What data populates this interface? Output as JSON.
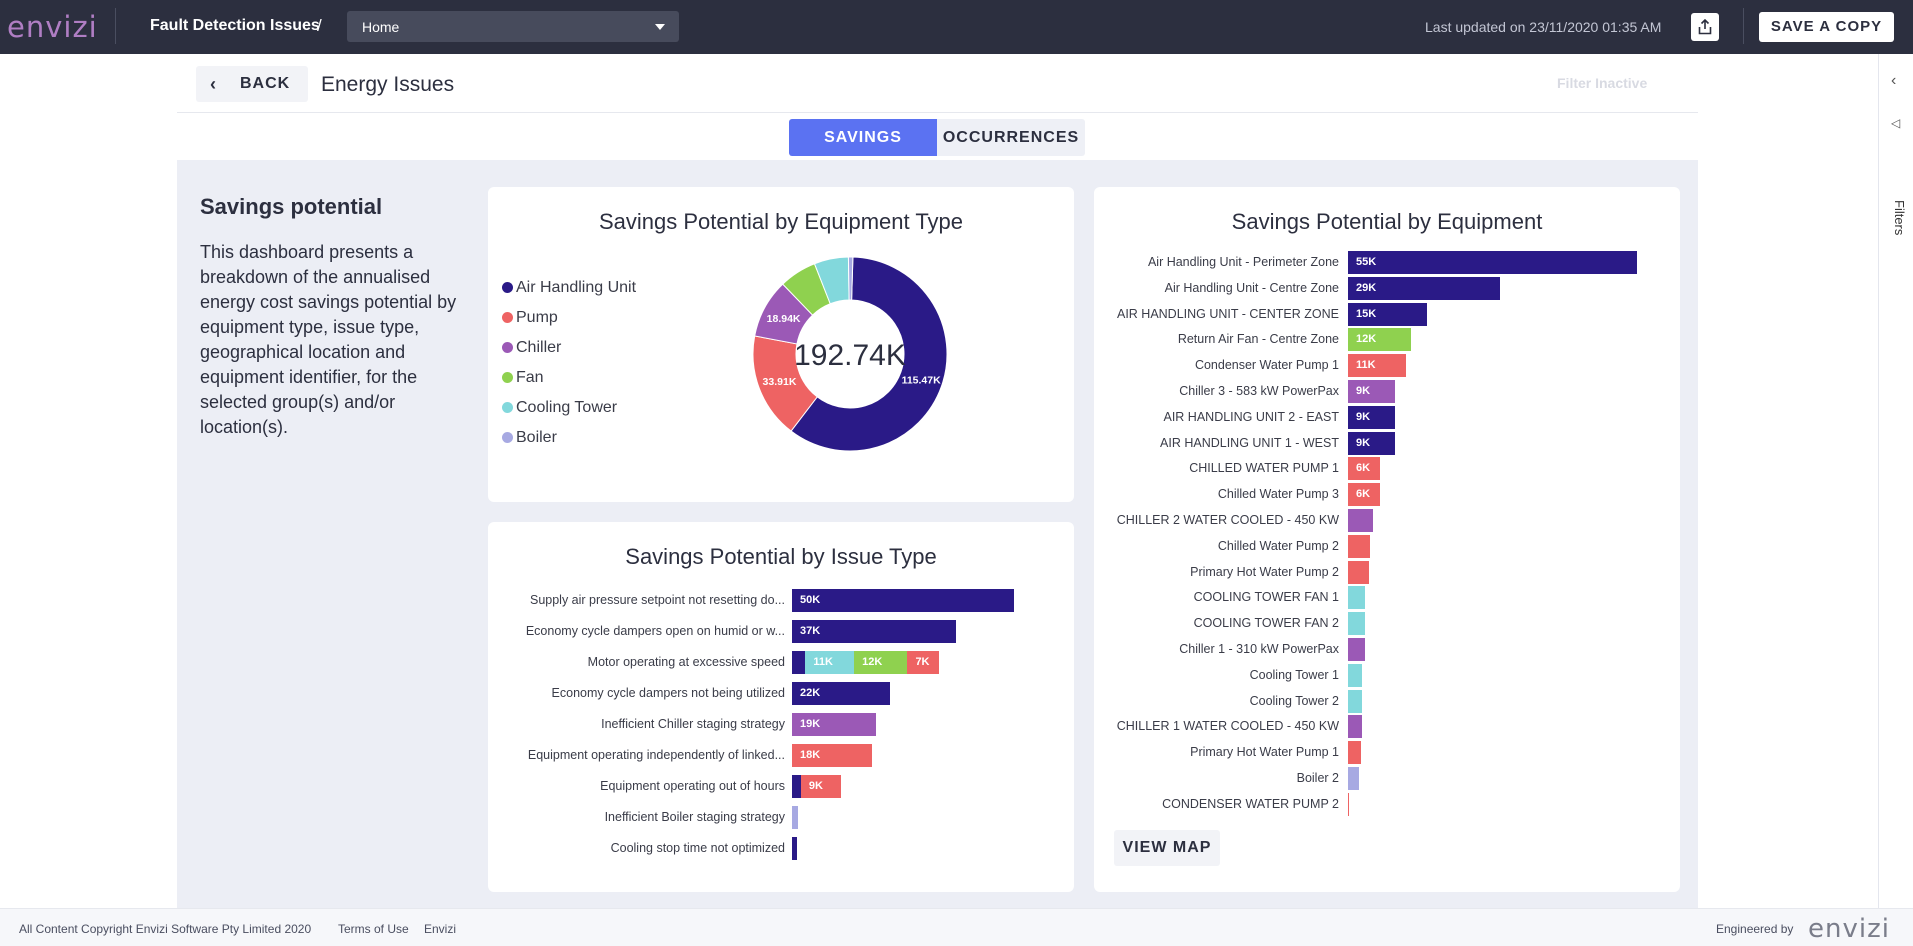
{
  "topbar": {
    "logo": "envizi",
    "app_title": "Fault Detection Issues",
    "separator": "/",
    "dashboard_select": "Home",
    "last_updated": "Last updated on 23/11/2020 01:35 AM",
    "share_icon": "share-icon",
    "save_copy_label": "SAVE A COPY"
  },
  "header": {
    "back_label": "BACK",
    "title": "Energy Issues",
    "filter_status": "Filter Inactive"
  },
  "right_rail": {
    "collapse_icon": "chevron-left-icon",
    "filter_icon": "filter-icon",
    "label": "Filters"
  },
  "tabs": [
    {
      "label": "SAVINGS",
      "active": true
    },
    {
      "label": "OCCURRENCES",
      "active": false
    }
  ],
  "description": {
    "title": "Savings potential",
    "text": "This dashboard presents a breakdown of the annualised energy cost savings potential by equipment type, issue type, geographical location and equipment identifier, for the selected group(s) and/or location(s)."
  },
  "colors": {
    "ahu": "#2a1a87",
    "pump": "#ee6363",
    "chiller": "#9b59b6",
    "fan": "#8fd14f",
    "cooling_tower": "#82d8dc",
    "boiler": "#a7a9e2"
  },
  "chart_data": [
    {
      "type": "pie",
      "title": "Savings Potential by Equipment Type",
      "center_label": "192.74K",
      "categories": [
        "Air Handling Unit",
        "Pump",
        "Chiller",
        "Fan",
        "Cooling Tower",
        "Boiler"
      ],
      "values": [
        115.47,
        33.91,
        18.94,
        12,
        11,
        1.42
      ],
      "data_labels": [
        "115.47K",
        "33.91K",
        "18.94K",
        "",
        "",
        ""
      ],
      "colors": [
        "#2a1a87",
        "#ee6363",
        "#9b59b6",
        "#8fd14f",
        "#82d8dc",
        "#a7a9e2"
      ],
      "legend": "left"
    },
    {
      "type": "bar",
      "orientation": "horizontal",
      "stacked": true,
      "title": "Savings Potential by Issue Type",
      "categories": [
        "Supply air pressure setpoint not resetting do...",
        "Economy cycle dampers open on humid or w...",
        "Motor operating at excessive speed",
        "Economy cycle dampers not being utilized",
        "Inefficient Chiller staging strategy",
        "Equipment operating independently of linked...",
        "Equipment operating out of hours",
        "Inefficient Boiler staging strategy",
        "Cooling stop time not optimized"
      ],
      "series": [
        {
          "name": "Air Handling Unit",
          "color": "#2a1a87",
          "values": [
            50,
            37,
            3,
            22,
            0,
            0,
            2,
            0,
            1.2
          ],
          "labels": [
            "50K",
            "37K",
            "",
            "22K",
            "",
            "",
            "",
            "",
            ""
          ]
        },
        {
          "name": "Chiller",
          "color": "#9b59b6",
          "values": [
            0,
            0,
            0,
            0,
            19,
            0,
            0,
            0,
            0
          ],
          "labels": [
            "",
            "",
            "",
            "",
            "19K",
            "",
            "",
            "",
            ""
          ]
        },
        {
          "name": "Cooling Tower",
          "color": "#82d8dc",
          "values": [
            0,
            0,
            11,
            0,
            0,
            0,
            0,
            0,
            0
          ],
          "labels": [
            "",
            "",
            "11K",
            "",
            "",
            "",
            "",
            "",
            ""
          ]
        },
        {
          "name": "Fan",
          "color": "#8fd14f",
          "values": [
            0,
            0,
            12,
            0,
            0,
            0,
            0,
            0,
            0
          ],
          "labels": [
            "",
            "",
            "12K",
            "",
            "",
            "",
            "",
            "",
            ""
          ]
        },
        {
          "name": "Pump",
          "color": "#ee6363",
          "values": [
            0,
            0,
            7,
            0,
            0,
            18,
            9,
            0,
            0
          ],
          "labels": [
            "",
            "",
            "7K",
            "",
            "",
            "18K",
            "9K",
            "",
            ""
          ]
        },
        {
          "name": "Boiler",
          "color": "#a7a9e2",
          "values": [
            0,
            0,
            0,
            0,
            0,
            0,
            0,
            1.4,
            0
          ],
          "labels": [
            "",
            "",
            "",
            "",
            "",
            "",
            "",
            "",
            ""
          ]
        }
      ]
    },
    {
      "type": "bar",
      "orientation": "horizontal",
      "title": "Savings Potential by Equipment",
      "categories": [
        "Air Handling Unit - Perimeter Zone",
        "Air Handling Unit - Centre Zone",
        "AIR HANDLING UNIT - CENTER ZONE",
        "Return Air Fan - Centre Zone",
        "Condenser Water Pump 1",
        "Chiller 3 - 583 kW PowerPax",
        "AIR HANDLING UNIT 2 - EAST",
        "AIR HANDLING UNIT 1 - WEST",
        "CHILLED WATER PUMP 1",
        "Chilled Water Pump 3",
        "CHILLER 2 WATER COOLED - 450 KW",
        "Chilled Water Pump 2",
        "Primary Hot Water Pump 2",
        "COOLING TOWER FAN 1",
        "COOLING TOWER FAN 2",
        "Chiller 1 - 310 kW PowerPax",
        "Cooling Tower 1",
        "Cooling Tower 2",
        "CHILLER 1 WATER COOLED - 450 KW",
        "Primary Hot Water Pump 1",
        "Boiler 2",
        "CONDENSER WATER PUMP 2"
      ],
      "values": [
        55,
        29,
        15,
        12,
        11,
        9,
        9,
        9,
        6,
        6,
        4.8,
        4.2,
        4,
        3.2,
        3.2,
        3.2,
        2.6,
        2.6,
        2.6,
        2.4,
        2,
        0.2
      ],
      "labels": [
        "55K",
        "29K",
        "15K",
        "12K",
        "11K",
        "9K",
        "9K",
        "9K",
        "6K",
        "6K",
        "",
        "",
        "",
        "",
        "",
        "",
        "",
        "",
        "",
        "",
        "",
        ""
      ],
      "colors": [
        "#2a1a87",
        "#2a1a87",
        "#2a1a87",
        "#8fd14f",
        "#ee6363",
        "#9b59b6",
        "#2a1a87",
        "#2a1a87",
        "#ee6363",
        "#ee6363",
        "#9b59b6",
        "#ee6363",
        "#ee6363",
        "#82d8dc",
        "#82d8dc",
        "#9b59b6",
        "#82d8dc",
        "#82d8dc",
        "#9b59b6",
        "#ee6363",
        "#a7a9e2",
        "#ee6363"
      ]
    }
  ],
  "view_map_label": "VIEW MAP",
  "footer": {
    "copyright": "All Content Copyright Envizi Software Pty Limited 2020",
    "terms": "Terms of Use",
    "envizi_link": "Envizi",
    "engineered_by": "Engineered by",
    "logo": "envizi"
  }
}
